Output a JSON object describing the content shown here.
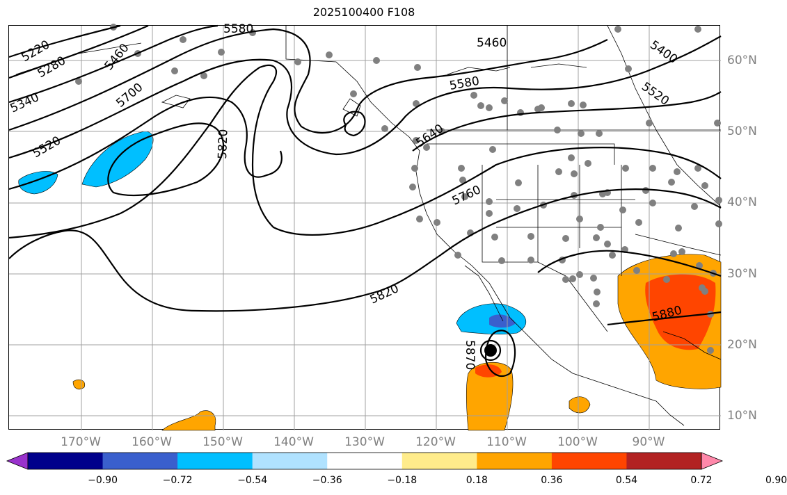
{
  "title": "2025100400 F108",
  "map": {
    "lon_labels": [
      {
        "text": "170°W",
        "lon": -170
      },
      {
        "text": "160°W",
        "lon": -160
      },
      {
        "text": "150°W",
        "lon": -150
      },
      {
        "text": "140°W",
        "lon": -140
      },
      {
        "text": "130°W",
        "lon": -130
      },
      {
        "text": "120°W",
        "lon": -120
      },
      {
        "text": "110°W",
        "lon": -110
      },
      {
        "text": "100°W",
        "lon": -100
      },
      {
        "text": "90°W",
        "lon": -90
      }
    ],
    "lat_labels": [
      {
        "text": "60°N",
        "lat": 60
      },
      {
        "text": "50°N",
        "lat": 50
      },
      {
        "text": "40°N",
        "lat": 40
      },
      {
        "text": "30°N",
        "lat": 30
      },
      {
        "text": "20°N",
        "lat": 20
      },
      {
        "text": "10°N",
        "lat": 10
      }
    ],
    "contour_labels": [
      "5220",
      "5280",
      "5340",
      "5400",
      "5460",
      "5520",
      "5580",
      "5640",
      "5700",
      "5760",
      "5820",
      "5870",
      "5880"
    ],
    "label_color": "#808080",
    "grid_color": "#a0a0a0",
    "station_color": "#808080"
  },
  "colorbar": {
    "colors": [
      "#9932cc",
      "#00008b",
      "#3a5fcd",
      "#00bfff",
      "#b0e2ff",
      "#ffffff",
      "#ffec8b",
      "#ffa500",
      "#ff4500",
      "#b22222",
      "#ff88aa"
    ],
    "ticks": [
      "−0.90",
      "−0.72",
      "−0.54",
      "−0.36",
      "−0.18",
      "0.18",
      "0.36",
      "0.54",
      "0.72",
      "0.90"
    ]
  }
}
